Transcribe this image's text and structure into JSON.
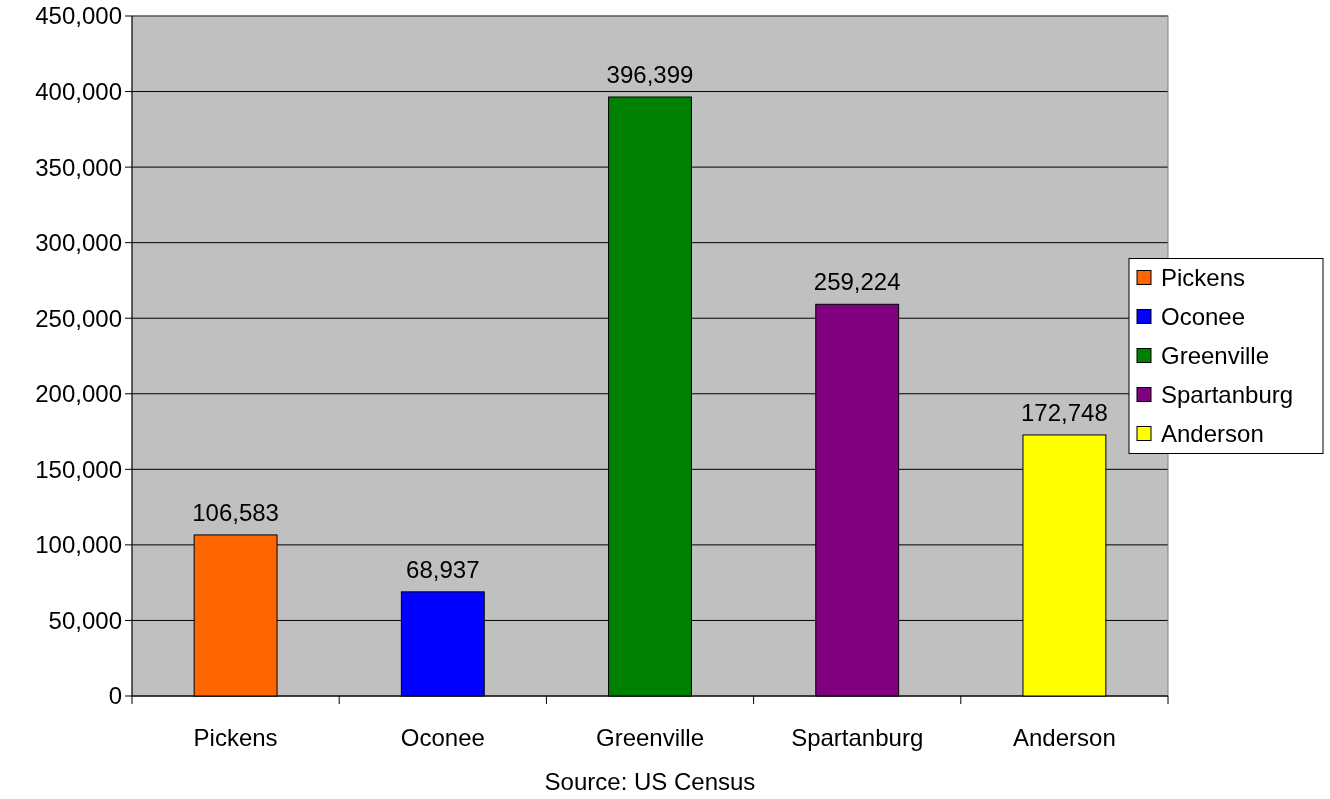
{
  "chart_data": {
    "type": "bar",
    "categories": [
      "Pickens",
      "Oconee",
      "Greenville",
      "Spartanburg",
      "Anderson"
    ],
    "series": [
      {
        "name": "Pickens",
        "color": "#ff6600",
        "values": [
          106583,
          null,
          null,
          null,
          null
        ],
        "value_labels": [
          "106,583",
          null,
          null,
          null,
          null
        ]
      },
      {
        "name": "Oconee",
        "color": "#0000ff",
        "values": [
          null,
          68937,
          null,
          null,
          null
        ],
        "value_labels": [
          null,
          "68,937",
          null,
          null,
          null
        ]
      },
      {
        "name": "Greenville",
        "color": "#008000",
        "values": [
          null,
          null,
          396399,
          null,
          null
        ],
        "value_labels": [
          null,
          null,
          "396,399",
          null,
          null
        ]
      },
      {
        "name": "Spartanburg",
        "color": "#800080",
        "values": [
          null,
          null,
          null,
          259224,
          null
        ],
        "value_labels": [
          null,
          null,
          null,
          "259,224",
          null
        ]
      },
      {
        "name": "Anderson",
        "color": "#ffff00",
        "values": [
          null,
          null,
          null,
          null,
          172748
        ],
        "value_labels": [
          null,
          null,
          null,
          null,
          "172,748"
        ]
      }
    ],
    "ylim": [
      0,
      450000
    ],
    "yticks": [
      {
        "value": 0,
        "label": "0"
      },
      {
        "value": 50000,
        "label": "50,000"
      },
      {
        "value": 100000,
        "label": "100,000"
      },
      {
        "value": 150000,
        "label": "150,000"
      },
      {
        "value": 200000,
        "label": "200,000"
      },
      {
        "value": 250000,
        "label": "250,000"
      },
      {
        "value": 300000,
        "label": "300,000"
      },
      {
        "value": 350000,
        "label": "350,000"
      },
      {
        "value": 400000,
        "label": "400,000"
      },
      {
        "value": 450000,
        "label": "450,000"
      }
    ],
    "grid": "y",
    "legend": "right",
    "annotations": [
      "Source: US Census"
    ]
  }
}
